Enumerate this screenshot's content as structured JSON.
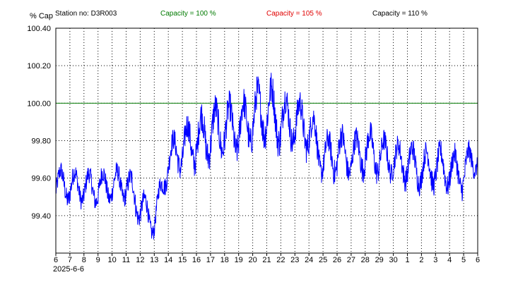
{
  "header": {
    "y_unit": "% Cap",
    "station": "Station no: D3R003",
    "ref_lines": [
      {
        "label": "Capacity = 100 %",
        "color": "#007a00",
        "value": 100.0
      },
      {
        "label": "Capacity = 105 %",
        "color": "#e00000",
        "value": 105.0
      },
      {
        "label": "Capacity = 110 %",
        "color": "#000000",
        "value": 110.0
      }
    ]
  },
  "x_date_label": "2025-6-6",
  "chart_data": {
    "type": "line",
    "title": "",
    "xlabel": "",
    "ylabel": "% Cap",
    "grid": true,
    "ylim": [
      99.2,
      100.4
    ],
    "yticks": [
      "99.40",
      "99.60",
      "99.80",
      "100.00",
      "100.20",
      "100.40"
    ],
    "yticks_values": [
      99.4,
      99.6,
      99.8,
      100.0,
      100.2,
      100.4
    ],
    "xlim": [
      "2025-06-06",
      "2025-07-06"
    ],
    "xticks": [
      "6",
      "7",
      "8",
      "9",
      "10",
      "11",
      "12",
      "13",
      "14",
      "15",
      "16",
      "17",
      "18",
      "19",
      "20",
      "21",
      "22",
      "23",
      "24",
      "25",
      "26",
      "27",
      "28",
      "29",
      "30",
      "1",
      "2",
      "3",
      "4",
      "5",
      "6"
    ],
    "series": [
      {
        "color": "#0000ff",
        "x": [
          "2025-06-06",
          "2025-06-07",
          "2025-06-08",
          "2025-06-09",
          "2025-06-10",
          "2025-06-11",
          "2025-06-12",
          "2025-06-13",
          "2025-06-14",
          "2025-06-15",
          "2025-06-16",
          "2025-06-17",
          "2025-06-18",
          "2025-06-19",
          "2025-06-20",
          "2025-06-21",
          "2025-06-22",
          "2025-06-23",
          "2025-06-24",
          "2025-06-25",
          "2025-06-26",
          "2025-06-27",
          "2025-06-28",
          "2025-06-29",
          "2025-06-30",
          "2025-07-01",
          "2025-07-02",
          "2025-07-03",
          "2025-07-04",
          "2025-07-05",
          "2025-07-06"
        ],
        "mean": [
          99.57,
          99.56,
          99.55,
          99.55,
          99.56,
          99.57,
          99.45,
          99.36,
          99.7,
          99.76,
          99.8,
          99.84,
          99.87,
          99.86,
          99.92,
          99.97,
          99.91,
          99.9,
          99.87,
          99.7,
          99.74,
          99.71,
          99.75,
          99.72,
          99.7,
          99.68,
          99.65,
          99.66,
          99.64,
          99.63,
          99.72
        ],
        "amplitude": [
          0.09,
          0.1,
          0.09,
          0.1,
          0.09,
          0.1,
          0.1,
          0.08,
          0.1,
          0.13,
          0.15,
          0.16,
          0.15,
          0.15,
          0.16,
          0.17,
          0.16,
          0.14,
          0.15,
          0.11,
          0.14,
          0.11,
          0.13,
          0.12,
          0.1,
          0.12,
          0.11,
          0.12,
          0.11,
          0.12,
          0.08
        ]
      }
    ]
  }
}
